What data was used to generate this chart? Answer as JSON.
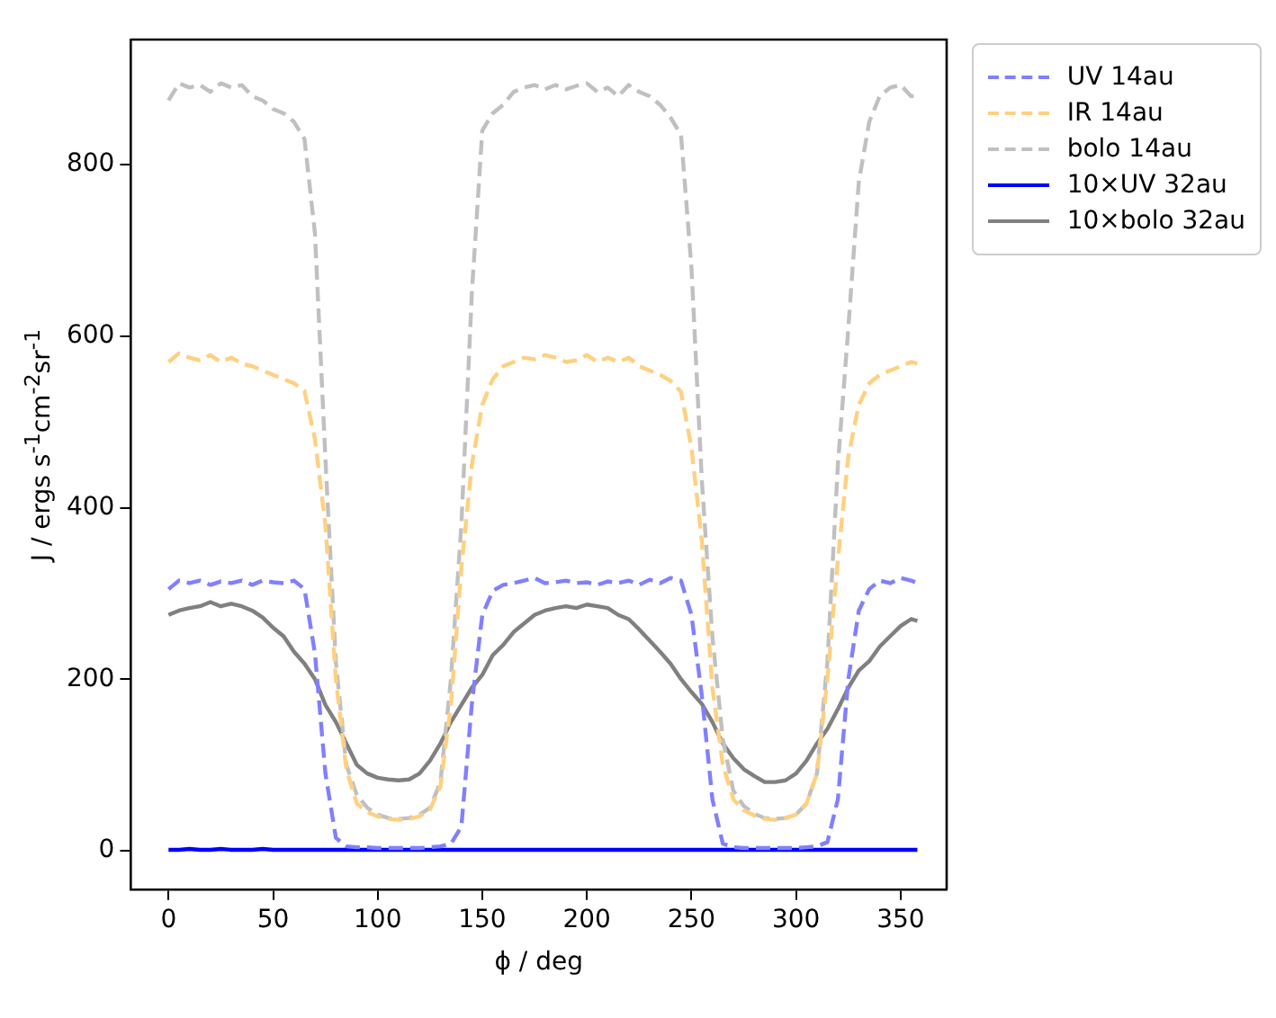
{
  "chart_data": {
    "type": "line",
    "xlabel": "ϕ / deg",
    "ylabel": "J / ergs s$^{-1}$cm$^{-2}$sr$^{-1}$",
    "x": [
      0,
      5,
      10,
      15,
      20,
      25,
      30,
      35,
      40,
      45,
      50,
      55,
      60,
      65,
      70,
      75,
      80,
      85,
      90,
      95,
      100,
      105,
      110,
      115,
      120,
      125,
      130,
      135,
      140,
      145,
      150,
      155,
      160,
      165,
      170,
      175,
      180,
      185,
      190,
      195,
      200,
      205,
      210,
      215,
      220,
      225,
      230,
      235,
      240,
      245,
      250,
      255,
      260,
      265,
      270,
      275,
      280,
      285,
      290,
      295,
      300,
      305,
      310,
      315,
      320,
      325,
      330,
      335,
      340,
      345,
      350,
      355,
      358
    ],
    "xlim": [
      -18,
      372
    ],
    "xticks": [
      0,
      50,
      100,
      150,
      200,
      250,
      300,
      350
    ],
    "ylim": [
      -45,
      946
    ],
    "yticks": [
      0,
      200,
      400,
      600,
      800
    ],
    "grid": false,
    "legend": "right",
    "marker": "none",
    "series": [
      {
        "name": "UV 14au",
        "color": "#8080ff",
        "line_style": "dashed",
        "values": [
          305,
          315,
          312,
          315,
          310,
          314,
          312,
          315,
          310,
          315,
          313,
          312,
          315,
          305,
          230,
          90,
          15,
          5,
          4,
          4,
          3,
          3,
          3,
          3,
          3,
          4,
          5,
          8,
          28,
          171,
          275,
          303,
          310,
          312,
          315,
          318,
          312,
          313,
          315,
          312,
          313,
          310,
          314,
          312,
          315,
          310,
          316,
          312,
          318,
          315,
          275,
          180,
          60,
          8,
          4,
          3,
          3,
          3,
          3,
          3,
          3,
          4,
          5,
          10,
          60,
          200,
          280,
          305,
          315,
          312,
          318,
          315,
          312
        ]
      },
      {
        "name": "IR 14au",
        "color": "#ffd080",
        "line_style": "dashed",
        "values": [
          570,
          580,
          575,
          572,
          578,
          570,
          575,
          568,
          565,
          560,
          555,
          550,
          545,
          536,
          480,
          380,
          200,
          95,
          55,
          45,
          40,
          37,
          36,
          37,
          40,
          48,
          75,
          170,
          330,
          450,
          520,
          550,
          565,
          570,
          575,
          573,
          578,
          575,
          570,
          572,
          578,
          570,
          575,
          570,
          575,
          565,
          560,
          555,
          548,
          535,
          470,
          360,
          190,
          100,
          60,
          47,
          41,
          37,
          36,
          38,
          42,
          55,
          90,
          200,
          340,
          460,
          520,
          545,
          555,
          560,
          565,
          570,
          568
        ]
      },
      {
        "name": "bolo 14au",
        "color": "#c0c0c0",
        "line_style": "dashed",
        "values": [
          875,
          895,
          890,
          893,
          885,
          895,
          890,
          893,
          880,
          875,
          865,
          860,
          850,
          830,
          720,
          457,
          220,
          100,
          65,
          50,
          42,
          38,
          37,
          38,
          42,
          50,
          80,
          200,
          380,
          650,
          840,
          860,
          870,
          885,
          890,
          893,
          888,
          893,
          888,
          892,
          895,
          885,
          890,
          880,
          893,
          885,
          880,
          870,
          855,
          835,
          680,
          430,
          250,
          130,
          70,
          52,
          43,
          38,
          37,
          38,
          42,
          55,
          90,
          220,
          450,
          610,
          780,
          850,
          880,
          890,
          893,
          880,
          880
        ]
      },
      {
        "name": "10×UV 32au",
        "color": "#0000ff",
        "line_style": "solid",
        "values": [
          1,
          1,
          2,
          1,
          1,
          2,
          1,
          1,
          1,
          2,
          1,
          1,
          1,
          1,
          1,
          1,
          1,
          1,
          1,
          1,
          1,
          1,
          1,
          1,
          1,
          1,
          1,
          1,
          1,
          1,
          1,
          1,
          1,
          1,
          1,
          1,
          1,
          1,
          1,
          1,
          1,
          1,
          1,
          1,
          1,
          1,
          1,
          1,
          1,
          1,
          1,
          1,
          1,
          1,
          1,
          1,
          1,
          1,
          1,
          1,
          1,
          1,
          1,
          1,
          1,
          1,
          1,
          1,
          1,
          1,
          1,
          1,
          1
        ]
      },
      {
        "name": "10×bolo 32au",
        "color": "#808080",
        "line_style": "solid",
        "values": [
          275,
          280,
          283,
          285,
          290,
          285,
          288,
          285,
          280,
          272,
          260,
          250,
          232,
          218,
          200,
          170,
          150,
          125,
          100,
          90,
          85,
          83,
          82,
          83,
          90,
          105,
          125,
          150,
          170,
          190,
          205,
          228,
          240,
          255,
          265,
          275,
          280,
          283,
          285,
          283,
          287,
          285,
          283,
          275,
          270,
          258,
          245,
          232,
          218,
          200,
          185,
          171,
          150,
          125,
          108,
          95,
          87,
          80,
          80,
          82,
          90,
          105,
          125,
          142,
          165,
          190,
          210,
          221,
          238,
          250,
          262,
          270,
          268
        ]
      }
    ]
  }
}
